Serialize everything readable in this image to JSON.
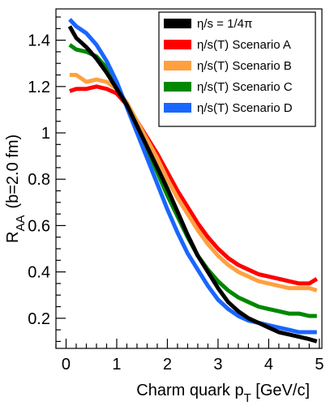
{
  "chart_data": {
    "type": "line",
    "xlabel": {
      "main": "Charm quark p",
      "sub": "T",
      "unit": " [GeV/c]"
    },
    "ylabel": {
      "main": "R",
      "sub": "AA",
      "extra": "(b=2.0 fm)"
    },
    "xlim": [
      -0.2,
      5.05
    ],
    "ylim": [
      0.07,
      1.535
    ],
    "x_ticks": [
      0,
      1,
      2,
      3,
      4,
      5
    ],
    "y_ticks": [
      0.2,
      0.4,
      0.6,
      0.8,
      1,
      1.2,
      1.4
    ],
    "x_tick_labels": [
      "0",
      "1",
      "2",
      "3",
      "4",
      "5"
    ],
    "y_tick_labels": [
      "0.2",
      "0.4",
      "0.6",
      "0.8",
      "1",
      "1.2",
      "1.4"
    ],
    "grid": false,
    "legend_position": "top-right",
    "series": [
      {
        "name": "η/s = 1/4π",
        "color": "#000000",
        "x": [
          0.07,
          0.2,
          0.4,
          0.6,
          0.8,
          1.0,
          1.2,
          1.4,
          1.6,
          1.8,
          2.0,
          2.2,
          2.4,
          2.6,
          2.8,
          3.0,
          3.2,
          3.4,
          3.6,
          3.8,
          4.0,
          4.2,
          4.4,
          4.6,
          4.8,
          4.95
        ],
        "y": [
          1.46,
          1.41,
          1.37,
          1.32,
          1.26,
          1.19,
          1.12,
          1.03,
          0.94,
          0.85,
          0.76,
          0.66,
          0.56,
          0.47,
          0.4,
          0.33,
          0.27,
          0.23,
          0.2,
          0.18,
          0.16,
          0.14,
          0.13,
          0.12,
          0.11,
          0.1
        ]
      },
      {
        "name": "η/s(T) Scenario A",
        "color": "#ff0000",
        "x": [
          0.07,
          0.2,
          0.4,
          0.6,
          0.8,
          1.0,
          1.2,
          1.4,
          1.6,
          1.8,
          2.0,
          2.2,
          2.4,
          2.6,
          2.8,
          3.0,
          3.2,
          3.4,
          3.6,
          3.8,
          4.0,
          4.2,
          4.4,
          4.6,
          4.8,
          4.95
        ],
        "y": [
          1.18,
          1.19,
          1.19,
          1.2,
          1.19,
          1.17,
          1.12,
          1.05,
          0.98,
          0.91,
          0.83,
          0.75,
          0.68,
          0.61,
          0.55,
          0.5,
          0.46,
          0.43,
          0.41,
          0.39,
          0.38,
          0.37,
          0.36,
          0.35,
          0.35,
          0.37
        ]
      },
      {
        "name": "η/s(T) Scenario B",
        "color": "#ffa040",
        "x": [
          0.07,
          0.2,
          0.4,
          0.6,
          0.8,
          1.0,
          1.2,
          1.4,
          1.6,
          1.8,
          2.0,
          2.2,
          2.4,
          2.6,
          2.8,
          3.0,
          3.2,
          3.4,
          3.6,
          3.8,
          4.0,
          4.2,
          4.4,
          4.6,
          4.8,
          4.95
        ],
        "y": [
          1.25,
          1.25,
          1.22,
          1.23,
          1.22,
          1.19,
          1.13,
          1.05,
          0.97,
          0.89,
          0.8,
          0.72,
          0.65,
          0.58,
          0.52,
          0.47,
          0.43,
          0.4,
          0.38,
          0.36,
          0.35,
          0.34,
          0.33,
          0.33,
          0.33,
          0.32
        ]
      },
      {
        "name": "η/s(T) Scenario C",
        "color": "#008800",
        "x": [
          0.07,
          0.2,
          0.4,
          0.6,
          0.8,
          1.0,
          1.2,
          1.4,
          1.6,
          1.8,
          2.0,
          2.2,
          2.4,
          2.6,
          2.8,
          3.0,
          3.2,
          3.4,
          3.6,
          3.8,
          4.0,
          4.2,
          4.4,
          4.6,
          4.8,
          4.95
        ],
        "y": [
          1.38,
          1.36,
          1.35,
          1.33,
          1.28,
          1.2,
          1.12,
          1.03,
          0.93,
          0.83,
          0.73,
          0.64,
          0.55,
          0.47,
          0.41,
          0.36,
          0.32,
          0.29,
          0.27,
          0.25,
          0.24,
          0.23,
          0.22,
          0.22,
          0.21,
          0.21
        ]
      },
      {
        "name": "η/s(T) Scenario D",
        "color": "#1a66ff",
        "x": [
          0.07,
          0.2,
          0.4,
          0.6,
          0.8,
          1.0,
          1.2,
          1.4,
          1.6,
          1.8,
          2.0,
          2.2,
          2.4,
          2.6,
          2.8,
          3.0,
          3.2,
          3.4,
          3.6,
          3.8,
          4.0,
          4.2,
          4.4,
          4.6,
          4.8,
          4.95
        ],
        "y": [
          1.49,
          1.46,
          1.43,
          1.38,
          1.31,
          1.22,
          1.11,
          1.0,
          0.89,
          0.78,
          0.67,
          0.57,
          0.48,
          0.41,
          0.34,
          0.28,
          0.24,
          0.21,
          0.19,
          0.18,
          0.17,
          0.16,
          0.15,
          0.14,
          0.14,
          0.14
        ]
      }
    ]
  }
}
